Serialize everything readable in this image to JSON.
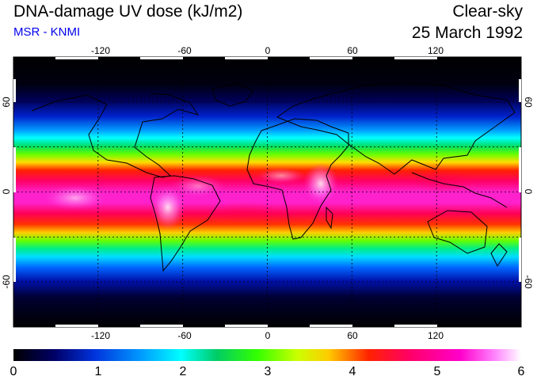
{
  "header": {
    "title": "DNA-damage UV dose (kJ/m2)",
    "subtitle": "MSR - KNMI",
    "condition": "Clear-sky",
    "date": "25 March 1992"
  },
  "axes": {
    "lon_ticks": [
      "-120",
      "-60",
      "0",
      "60",
      "120"
    ],
    "lat_ticks": [
      "60",
      "0",
      "-60"
    ]
  },
  "colorbar": {
    "ticks": [
      "0",
      "1",
      "2",
      "3",
      "4",
      "5",
      "6"
    ],
    "min": 0,
    "max": 6
  },
  "colors": {
    "scale": [
      "#000000",
      "#000066",
      "#0022cc",
      "#0099ff",
      "#00ffff",
      "#00cc66",
      "#33ff00",
      "#ccff00",
      "#ffcc00",
      "#ff3300",
      "#ff0066",
      "#ff00cc",
      "#ff99ff",
      "#ffffff"
    ]
  }
}
